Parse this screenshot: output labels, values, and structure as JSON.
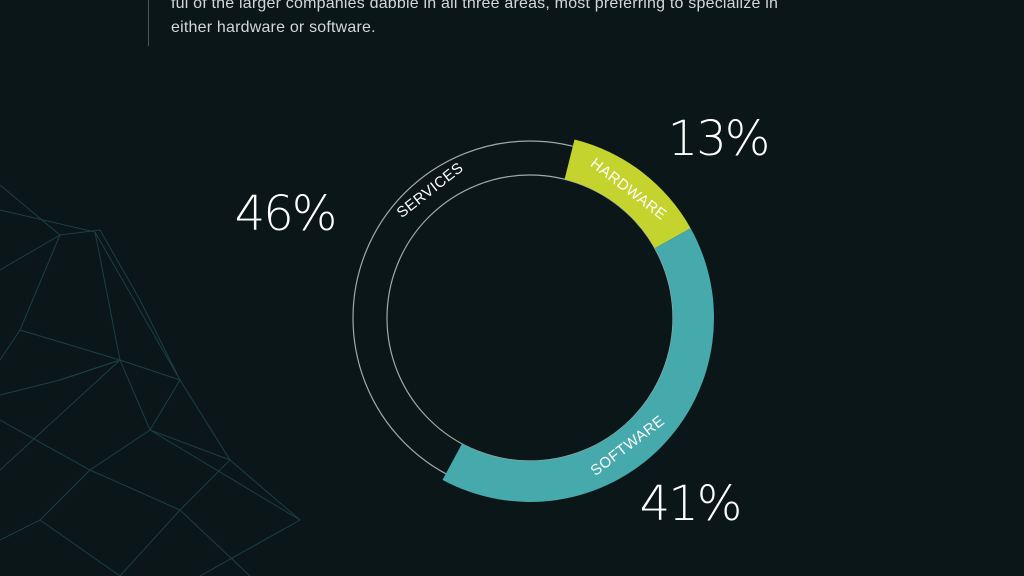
{
  "intro": {
    "line1": "ful of the larger companies dabble in all three areas, most preferring to specialize in",
    "line2": "either hardware or software."
  },
  "chart_data": {
    "type": "pie",
    "style": "donut",
    "categories": [
      "HARDWARE",
      "SOFTWARE",
      "SERVICES"
    ],
    "values": [
      13,
      41,
      46
    ],
    "value_labels": [
      "13%",
      "41%",
      "46%"
    ],
    "colors": [
      "#c5d32e",
      "#46a9ab",
      "outline"
    ],
    "legend": "none"
  },
  "colors": {
    "background": "#0b1618",
    "hardware": "#c5d32e",
    "software": "#46a9ab",
    "services_outline": "#b9c3c3",
    "text": "#ffffff"
  }
}
